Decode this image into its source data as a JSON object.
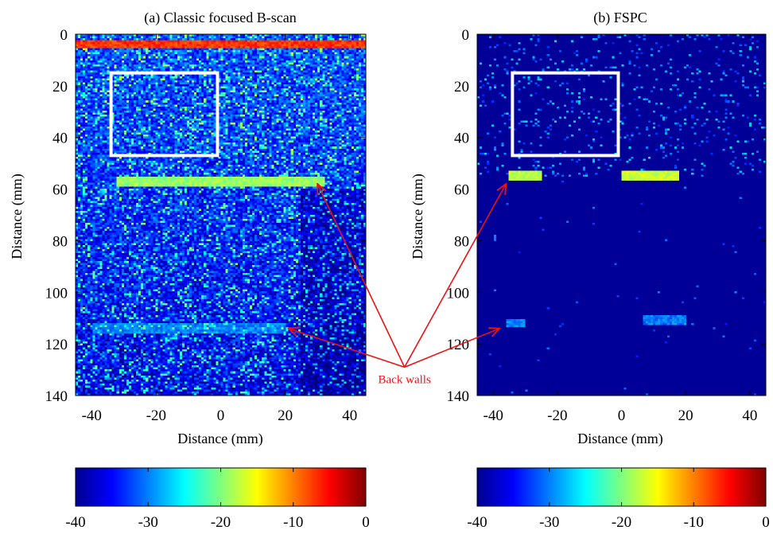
{
  "colors": {
    "annotation": "#ee1111",
    "roi_box": "#ffffff",
    "background_dark": "#00008f",
    "colormap": "jet"
  },
  "annotation": {
    "label": "Back walls",
    "arrows_to": [
      {
        "panel": 0,
        "x": 30,
        "y": 58
      },
      {
        "panel": 0,
        "x": 21,
        "y": 114
      },
      {
        "panel": 1,
        "x": -36,
        "y": 58
      },
      {
        "panel": 1,
        "x": -38,
        "y": 114
      }
    ],
    "label_anchor": {
      "panel": 0,
      "x": 57,
      "y": 129
    }
  },
  "chart_data": [
    {
      "type": "heatmap",
      "title": "(a) Classic focused B-scan",
      "xlabel": "Distance (mm)",
      "ylabel": "Distance (mm)",
      "xlim": [
        -45,
        45
      ],
      "ylim": [
        0,
        140
      ],
      "y_inverted": true,
      "xticks": [
        -40,
        -20,
        0,
        20,
        40
      ],
      "yticks": [
        0,
        20,
        40,
        60,
        80,
        100,
        120,
        140
      ],
      "colorbar": {
        "min": -40,
        "max": 0,
        "ticks": [
          -40,
          -30,
          -20,
          -10,
          0
        ]
      },
      "roi_box": {
        "x0": -34,
        "x1": -1,
        "y0": 15,
        "y1": 47
      },
      "features": [
        {
          "kind": "surface_echo",
          "y": 4,
          "x0": -45,
          "x1": 45,
          "level_db": -5
        },
        {
          "kind": "back_wall",
          "y": 57,
          "x0": -32,
          "x1": 32,
          "level_db": -17
        },
        {
          "kind": "back_wall",
          "y": 114,
          "x0": -40,
          "x1": 20,
          "level_db": -28
        }
      ],
      "background_level_db": -30
    },
    {
      "type": "heatmap",
      "title": "(b) FSPC",
      "xlabel": "Distance (mm)",
      "ylabel": "Distance (mm)",
      "xlim": [
        -45,
        45
      ],
      "ylim": [
        0,
        140
      ],
      "y_inverted": true,
      "xticks": [
        -40,
        -20,
        0,
        20,
        40
      ],
      "yticks": [
        0,
        20,
        40,
        60,
        80,
        100,
        120,
        140
      ],
      "colorbar": {
        "min": -40,
        "max": 0,
        "ticks": [
          -40,
          -30,
          -20,
          -10,
          0
        ]
      },
      "roi_box": {
        "x0": -34,
        "x1": -1,
        "y0": 15,
        "y1": 47
      },
      "features": [
        {
          "kind": "back_wall",
          "y": 55,
          "x0": -35,
          "x1": -25,
          "level_db": -16
        },
        {
          "kind": "back_wall",
          "y": 55,
          "x0": 0,
          "x1": 18,
          "level_db": -15
        },
        {
          "kind": "back_wall",
          "y": 112,
          "x0": -36,
          "x1": -30,
          "level_db": -28
        },
        {
          "kind": "back_wall",
          "y": 111,
          "x0": 7,
          "x1": 20,
          "level_db": -28
        }
      ],
      "background_level_db": -40
    }
  ]
}
